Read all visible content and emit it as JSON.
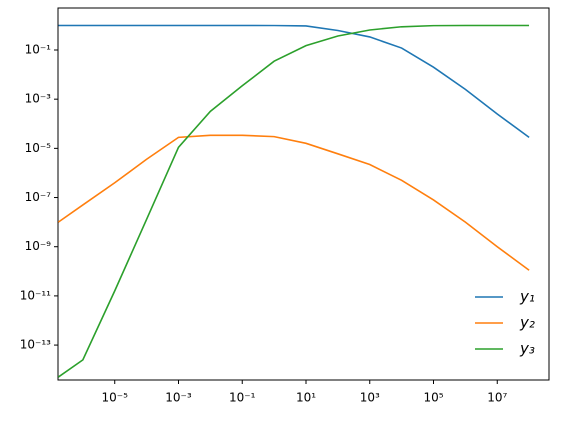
{
  "chart_data": {
    "type": "line",
    "log_x": true,
    "log_y": true,
    "legend": "lower right",
    "x": [
      1.7e-07,
      1e-06,
      1e-05,
      0.0001,
      0.001,
      0.01,
      0.1,
      1,
      10,
      100,
      1000,
      10000.0,
      100000.0,
      1000000.0,
      10000000.0,
      100000000.0
    ],
    "series": [
      {
        "name": "y₁",
        "color": "#1f77b4",
        "values": [
          1,
          1,
          1,
          1,
          1,
          1,
          1,
          0.99,
          0.95,
          0.62,
          0.34,
          0.12,
          0.02,
          0.0025,
          0.00025,
          2.8e-05
        ]
      },
      {
        "name": "y₂",
        "color": "#ff7f0e",
        "values": [
          1e-08,
          5e-08,
          4e-07,
          3.6e-06,
          2.8e-05,
          3.4e-05,
          3.4e-05,
          3e-05,
          1.6e-05,
          6e-06,
          2.2e-06,
          5e-07,
          8e-08,
          1e-08,
          1e-09,
          1.1e-10
        ]
      },
      {
        "name": "y₃",
        "color": "#2ca02c",
        "values": [
          5e-15,
          2.5e-14,
          1.6e-11,
          1.3e-08,
          1.1e-05,
          0.00032,
          0.0035,
          0.035,
          0.15,
          0.37,
          0.65,
          0.88,
          0.98,
          1,
          1,
          1
        ]
      }
    ],
    "xlim": [
      1.66e-07,
      420000000.0
    ],
    "ylim": [
      3.8e-15,
      5.1
    ],
    "xticks": [
      {
        "value": 1e-05,
        "label": "10⁻⁵"
      },
      {
        "value": 0.001,
        "label": "10⁻³"
      },
      {
        "value": 0.1,
        "label": "10⁻¹"
      },
      {
        "value": 10,
        "label": "10¹"
      },
      {
        "value": 1000,
        "label": "10³"
      },
      {
        "value": 100000.0,
        "label": "10⁵"
      },
      {
        "value": 10000000.0,
        "label": "10⁷"
      }
    ],
    "yticks": [
      {
        "value": 1e-13,
        "label": "10⁻¹³"
      },
      {
        "value": 1e-11,
        "label": "10⁻¹¹"
      },
      {
        "value": 1e-09,
        "label": "10⁻⁹"
      },
      {
        "value": 1e-07,
        "label": "10⁻⁷"
      },
      {
        "value": 1e-05,
        "label": "10⁻⁵"
      },
      {
        "value": 0.001,
        "label": "10⁻³"
      },
      {
        "value": 0.1,
        "label": "10⁻¹"
      }
    ]
  }
}
